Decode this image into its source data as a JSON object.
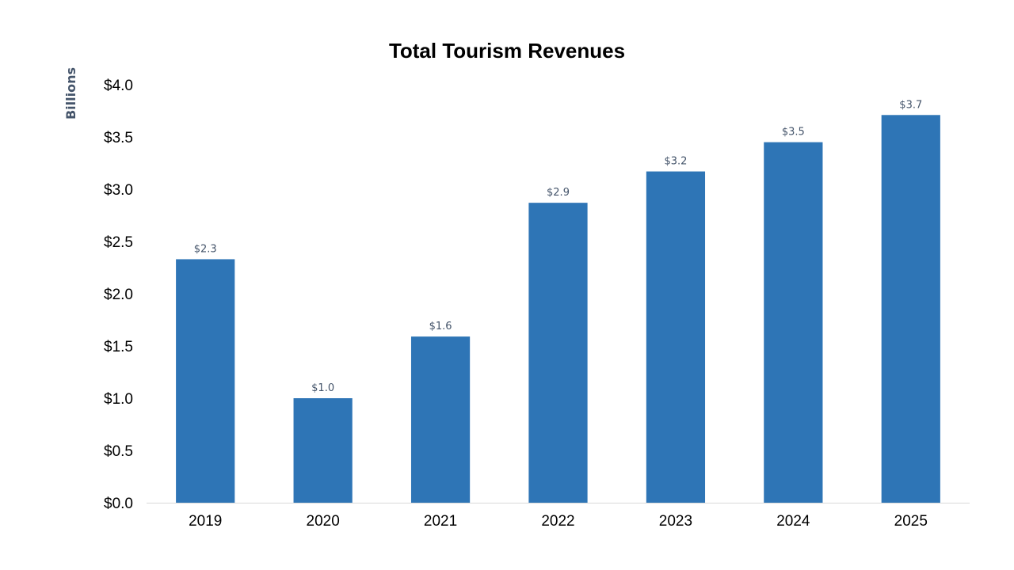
{
  "chart_data": {
    "type": "bar",
    "title": "Total Tourism Revenues",
    "xlabel": "",
    "ylabel": "Billions",
    "categories": [
      "2019",
      "2020",
      "2021",
      "2022",
      "2023",
      "2024",
      "2025"
    ],
    "values": [
      2.33,
      1.0,
      1.59,
      2.87,
      3.17,
      3.45,
      3.71
    ],
    "data_labels": [
      "$2.3",
      "$1.0",
      "$1.6",
      "$2.9",
      "$3.2",
      "$3.5",
      "$3.7"
    ],
    "ylim": [
      0,
      4.0
    ],
    "yticks": [
      0,
      0.5,
      1.0,
      1.5,
      2.0,
      2.5,
      3.0,
      3.5,
      4.0
    ],
    "ytick_labels": [
      "$0.0",
      "$0.5",
      "$1.0",
      "$1.5",
      "$2.0",
      "$2.5",
      "$3.0",
      "$3.5",
      "$4.0"
    ],
    "grid": false,
    "legend": "none",
    "colors": {
      "bar": "#2E75B6",
      "data_label": "#44546A",
      "axis_title": "#44546A",
      "axis_line": "#D9D9D9"
    }
  }
}
